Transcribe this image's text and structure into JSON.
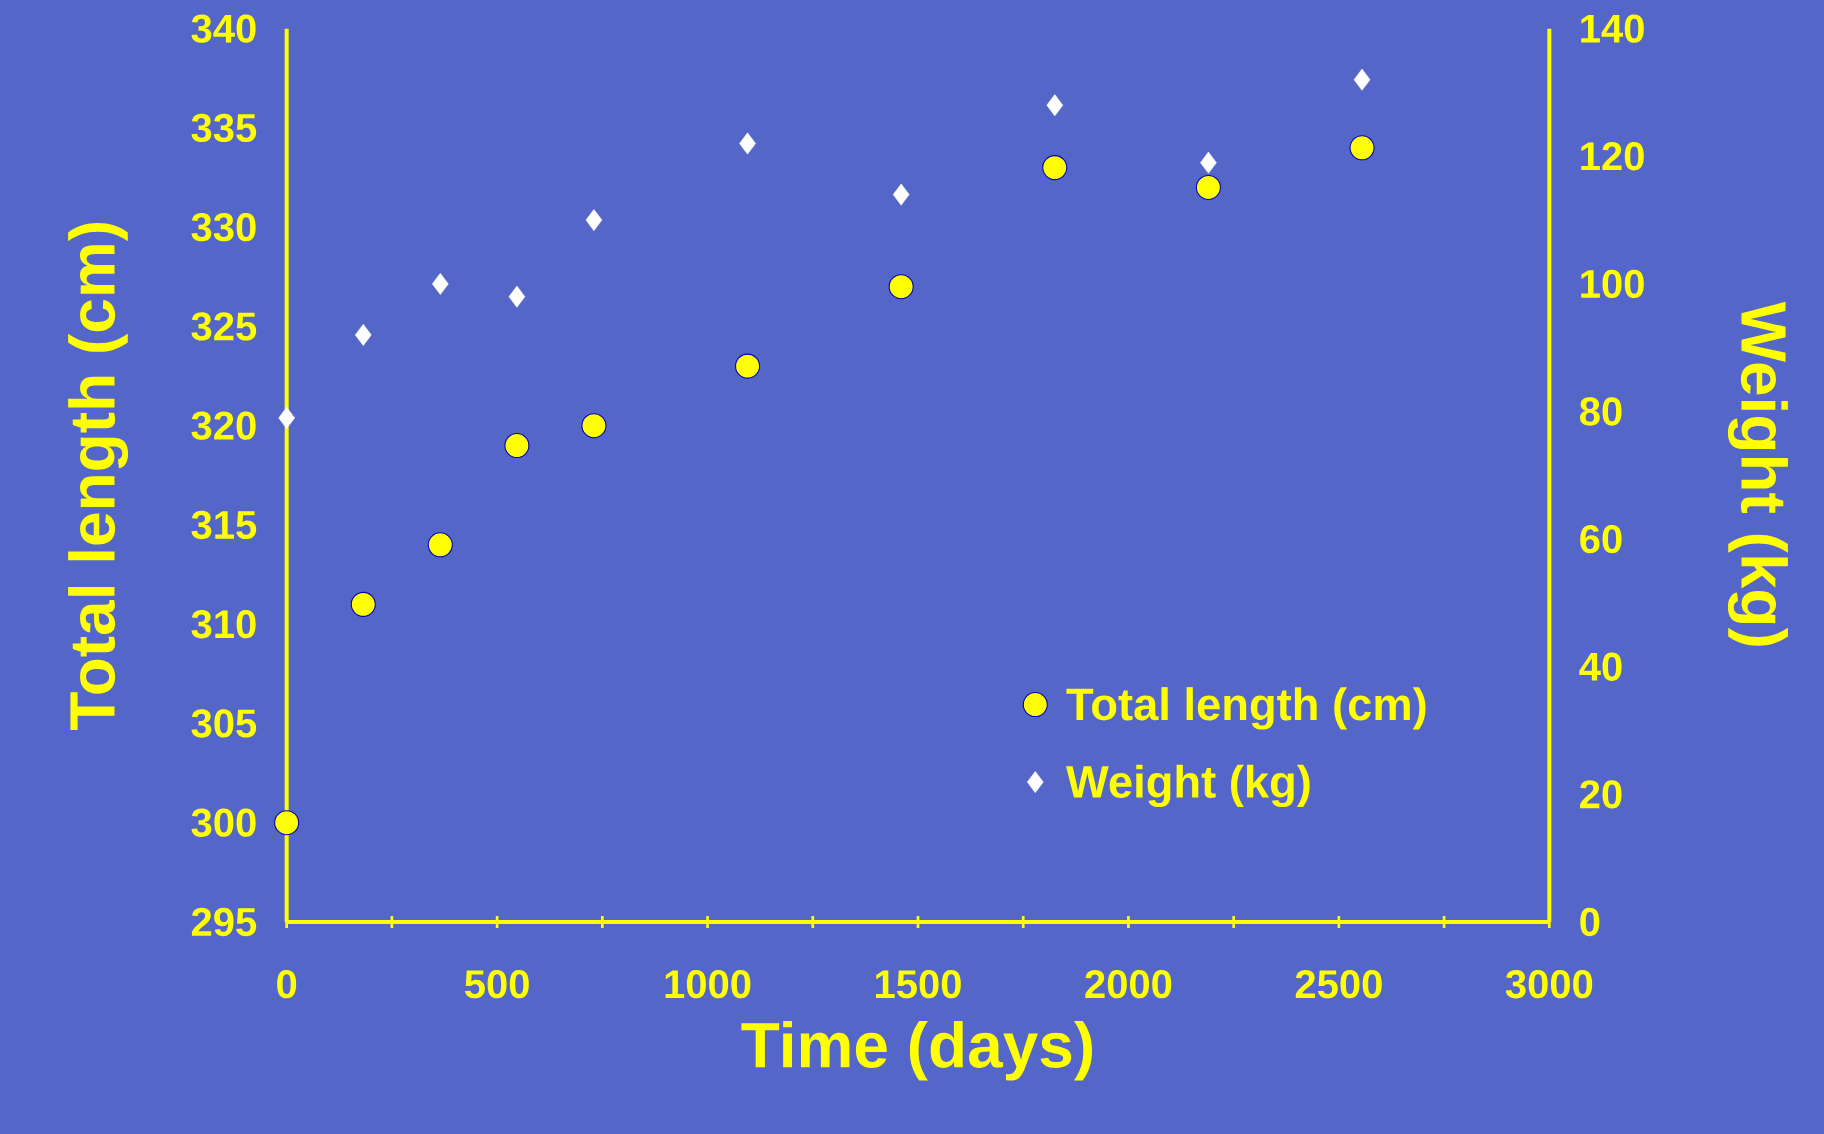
{
  "chart_data": {
    "type": "scatter",
    "xlabel": "Time (days)",
    "ylabel": "Total length (cm)",
    "y2label": "Weight (kg)",
    "x": [
      0,
      182,
      365,
      547,
      730,
      1095,
      1460,
      1825,
      2190,
      2555
    ],
    "xlim": [
      0,
      3000
    ],
    "xticks": [
      0,
      {
        "value": 250,
        "label": null
      },
      500,
      {
        "value": 750,
        "label": null
      },
      1000,
      {
        "value": 1250,
        "label": null
      },
      1500,
      {
        "value": 1750,
        "label": null
      },
      2000,
      {
        "value": 2250,
        "label": null
      },
      2500,
      {
        "value": 2750,
        "label": null
      },
      3000
    ],
    "ylim": [
      295,
      340
    ],
    "yticks": [
      295,
      300,
      305,
      310,
      315,
      320,
      325,
      330,
      335,
      340
    ],
    "y2lim": [
      0,
      140
    ],
    "y2ticks": [
      0,
      20,
      40,
      60,
      80,
      100,
      120,
      140
    ],
    "legend": "bottom right",
    "series": [
      {
        "name": "Total length (cm)",
        "color": "#ffff00",
        "marker": "circle",
        "values": [
          300,
          311,
          314,
          319,
          320,
          323,
          327,
          333,
          332,
          334
        ]
      },
      {
        "name": "Weight (kg)",
        "color": "#ffffff",
        "marker": "diamond",
        "axis": "y2",
        "values": [
          79,
          92,
          100,
          98,
          110,
          122,
          114,
          128,
          119,
          132
        ]
      }
    ]
  }
}
